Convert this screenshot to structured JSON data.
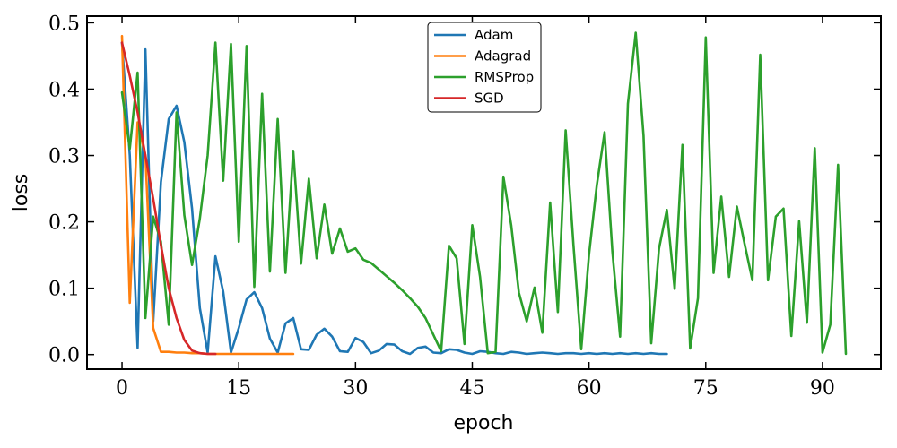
{
  "chart_data": {
    "type": "line",
    "title": "",
    "xlabel": "epoch",
    "ylabel": "loss",
    "xlim": [
      -4.5,
      97.5
    ],
    "ylim": [
      -0.022,
      0.51
    ],
    "xticks": [
      0,
      15,
      30,
      45,
      60,
      75,
      90
    ],
    "yticks": [
      0.0,
      0.1,
      0.2,
      0.3,
      0.4,
      0.5
    ],
    "xtick_labels": [
      "0",
      "15",
      "30",
      "45",
      "60",
      "75",
      "90"
    ],
    "ytick_labels": [
      "0.0",
      "0.1",
      "0.2",
      "0.3",
      "0.4",
      "0.5"
    ],
    "grid": false,
    "legend_position": "upper-center",
    "series": [
      {
        "name": "Adam",
        "color": "#1f77b4",
        "x": [
          0,
          1,
          2,
          3,
          4,
          5,
          6,
          7,
          8,
          9,
          10,
          11,
          12,
          13,
          14,
          15,
          16,
          17,
          18,
          19,
          20,
          21,
          22,
          23,
          24,
          25,
          26,
          27,
          28,
          29,
          30,
          31,
          32,
          33,
          34,
          35,
          36,
          37,
          38,
          39,
          40,
          41,
          42,
          43,
          44,
          45,
          46,
          47,
          48,
          49,
          50,
          51,
          52,
          53,
          54,
          55,
          56,
          57,
          58,
          59,
          60,
          61,
          62,
          63,
          64,
          65,
          66,
          67,
          68,
          69,
          70
        ],
        "y": [
          0.47,
          0.3,
          0.01,
          0.46,
          0.05,
          0.26,
          0.355,
          0.375,
          0.32,
          0.22,
          0.07,
          0.003,
          0.148,
          0.095,
          0.003,
          0.04,
          0.083,
          0.094,
          0.07,
          0.024,
          0.003,
          0.047,
          0.055,
          0.008,
          0.007,
          0.03,
          0.039,
          0.027,
          0.005,
          0.004,
          0.025,
          0.019,
          0.002,
          0.006,
          0.016,
          0.015,
          0.005,
          0.001,
          0.01,
          0.012,
          0.003,
          0.002,
          0.008,
          0.007,
          0.003,
          0.001,
          0.005,
          0.004,
          0.002,
          0.001,
          0.004,
          0.003,
          0.001,
          0.002,
          0.003,
          0.002,
          0.001,
          0.002,
          0.002,
          0.001,
          0.002,
          0.001,
          0.002,
          0.001,
          0.002,
          0.001,
          0.002,
          0.001,
          0.002,
          0.001,
          0.001
        ]
      },
      {
        "name": "Adagrad",
        "color": "#ff7f0e",
        "x": [
          0,
          1,
          2,
          3,
          4,
          5,
          6,
          7,
          8,
          9,
          10,
          11,
          12,
          13,
          14,
          15,
          16,
          17,
          18,
          19,
          20,
          21,
          22
        ],
        "y": [
          0.48,
          0.078,
          0.35,
          0.3,
          0.04,
          0.004,
          0.004,
          0.003,
          0.003,
          0.002,
          0.002,
          0.001,
          0.001,
          0.001,
          0.001,
          0.001,
          0.001,
          0.001,
          0.001,
          0.001,
          0.001,
          0.001,
          0.001
        ]
      },
      {
        "name": "RMSProp",
        "color": "#2ca02c",
        "x": [
          0,
          1,
          2,
          3,
          4,
          5,
          6,
          7,
          8,
          9,
          10,
          11,
          12,
          13,
          14,
          15,
          16,
          17,
          18,
          19,
          20,
          21,
          22,
          23,
          24,
          25,
          26,
          27,
          28,
          29,
          30,
          31,
          32,
          33,
          34,
          35,
          36,
          37,
          38,
          39,
          40,
          41,
          42,
          43,
          44,
          45,
          46,
          47,
          48,
          49,
          50,
          51,
          52,
          53,
          54,
          55,
          56,
          57,
          58,
          59,
          60,
          61,
          62,
          63,
          64,
          65,
          66,
          67,
          68,
          69,
          70,
          71,
          72,
          73,
          74,
          75,
          76,
          77,
          78,
          79,
          80,
          81,
          82,
          83,
          84,
          85,
          86,
          87,
          88,
          89,
          90,
          91,
          92,
          93
        ],
        "y": [
          0.395,
          0.31,
          0.425,
          0.055,
          0.208,
          0.17,
          0.045,
          0.365,
          0.21,
          0.135,
          0.205,
          0.3,
          0.47,
          0.262,
          0.468,
          0.17,
          0.465,
          0.102,
          0.393,
          0.125,
          0.355,
          0.123,
          0.307,
          0.137,
          0.265,
          0.145,
          0.226,
          0.152,
          0.19,
          0.155,
          0.16,
          0.143,
          0.138,
          0.128,
          0.118,
          0.108,
          0.097,
          0.085,
          0.072,
          0.055,
          0.03,
          0.005,
          0.164,
          0.145,
          0.016,
          0.195,
          0.117,
          0.002,
          0.004,
          0.268,
          0.195,
          0.093,
          0.05,
          0.101,
          0.033,
          0.229,
          0.064,
          0.338,
          0.165,
          0.008,
          0.15,
          0.255,
          0.335,
          0.155,
          0.027,
          0.378,
          0.485,
          0.33,
          0.017,
          0.16,
          0.218,
          0.099,
          0.316,
          0.009,
          0.085,
          0.478,
          0.123,
          0.238,
          0.117,
          0.223,
          0.166,
          0.112,
          0.452,
          0.112,
          0.208,
          0.22,
          0.028,
          0.201,
          0.048,
          0.311,
          0.003,
          0.045,
          0.286,
          0.001
        ]
      },
      {
        "name": "SGD",
        "color": "#d62728",
        "x": [
          0,
          1,
          2,
          3,
          4,
          5,
          6,
          7,
          8,
          9,
          10,
          11,
          12
        ],
        "y": [
          0.47,
          0.42,
          0.365,
          0.3,
          0.235,
          0.165,
          0.1,
          0.055,
          0.022,
          0.006,
          0.002,
          0.001,
          0.001
        ]
      }
    ]
  }
}
